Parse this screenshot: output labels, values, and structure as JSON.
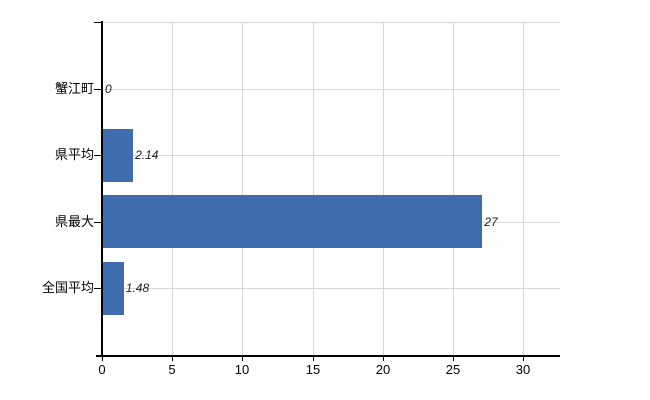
{
  "chart_data": {
    "type": "bar",
    "orientation": "horizontal",
    "title": "",
    "xlabel": "",
    "ylabel": "",
    "categories": [
      "蟹江町",
      "県平均",
      "県最大",
      "全国平均"
    ],
    "values": [
      0,
      2.14,
      27,
      1.48
    ],
    "value_labels": [
      "0",
      "2.14",
      "27",
      "1.48"
    ],
    "xticks": [
      0,
      5,
      10,
      15,
      20,
      25,
      30
    ],
    "xtick_labels": [
      "0",
      "5",
      "10",
      "15",
      "20",
      "25",
      "30"
    ],
    "xlim": [
      0,
      32.6
    ],
    "grid": true,
    "legend": "none",
    "bar_color": "#3e6cae",
    "gridline_color": "#d6d6d6",
    "axis_color": "#000000",
    "label_color": "#000000",
    "value_label_color": "#222222",
    "background_color": "#ffffff"
  }
}
